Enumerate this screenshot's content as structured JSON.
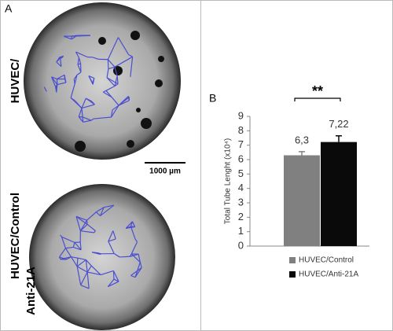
{
  "figure": {
    "panel_a": "A",
    "row_top": "HUVEC/",
    "row_bottom_1": "HUVEC/Control",
    "row_bottom_2": "Anti-21A",
    "scale_bar": "1000 µm"
  },
  "chart_data": {
    "type": "bar",
    "panel": "B",
    "ylabel": "Total Tube Lenght (x10⁴)",
    "significance": "**",
    "ylim": [
      0,
      9
    ],
    "yticks": [
      0,
      1,
      2,
      3,
      4,
      5,
      6,
      7,
      8,
      9
    ],
    "series": [
      {
        "name": "HUVEC/Control",
        "color": "#808080",
        "values": [
          6.3
        ],
        "value_labels": [
          "6,3"
        ],
        "errors": [
          0.25
        ]
      },
      {
        "name": "HUVEC/Anti-21A",
        "color": "#0a0a0a",
        "values": [
          7.22
        ],
        "value_labels": [
          "7,22"
        ],
        "errors": [
          0.43
        ]
      }
    ]
  }
}
